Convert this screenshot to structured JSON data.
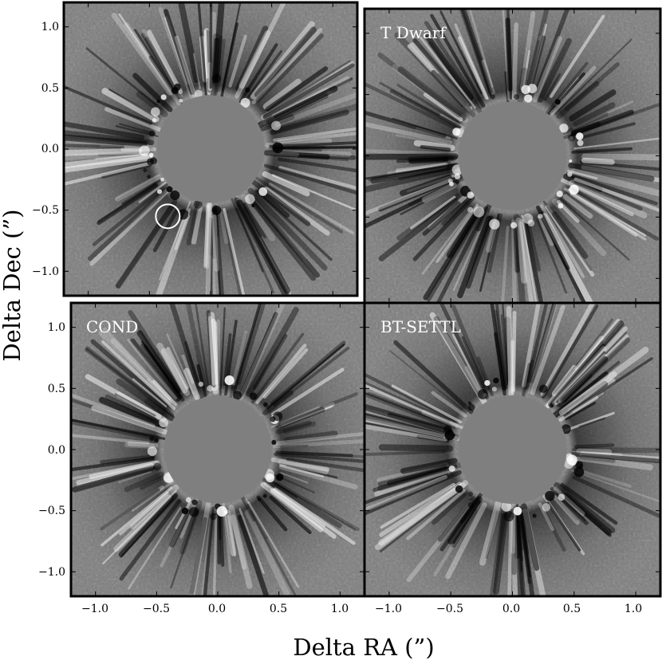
{
  "figure": {
    "xlabel": "Delta RA (”)",
    "ylabel": "Delta Dec (”)",
    "x_ticks": [
      "−1.0",
      "−0.5",
      "0.0",
      "0.5",
      "1.0"
    ],
    "y_ticks": [
      "1.0",
      "0.5",
      "0.0",
      "−0.5",
      "−1.0"
    ],
    "tick_values": [
      -1.0,
      -0.5,
      0.0,
      0.5,
      1.0
    ],
    "axis_range": [
      -1.2,
      1.2
    ]
  },
  "panels": [
    {
      "label": "",
      "marker_circle": {
        "ra": -0.35,
        "dec": -0.55
      }
    },
    {
      "label": "T Dwarf"
    },
    {
      "label": "COND"
    },
    {
      "label": "BT-SETTL"
    }
  ],
  "colors": {
    "background_gray": "#7c7c7c",
    "mask_gray": "#7f7f7f",
    "frame": "#000000",
    "label": "#ffffff"
  }
}
